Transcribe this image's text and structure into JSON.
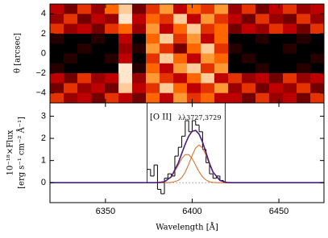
{
  "chart_data": [
    {
      "type": "heatmap",
      "ylabel": "θ [arcsec]",
      "xlim": [
        6318,
        6476
      ],
      "ylim": [
        -5,
        5
      ],
      "yticks": [
        {
          "value": -4,
          "label": "−4"
        },
        {
          "value": -2,
          "label": "−2"
        },
        0,
        2,
        4
      ],
      "z": [
        [
          0.5,
          0.3,
          0.6,
          0.4,
          0.7,
          0.9,
          0.3,
          0.6,
          0.8,
          0.5,
          0.7,
          0.6,
          0.8,
          0.4,
          0.6,
          0.3,
          0.5,
          0.6,
          0.4,
          0.5
        ],
        [
          0.4,
          0.6,
          0.3,
          0.5,
          0.4,
          0.95,
          0.5,
          0.7,
          0.6,
          0.9,
          0.5,
          0.8,
          0.6,
          0.5,
          0.3,
          0.6,
          0.4,
          0.3,
          0.6,
          0.4
        ],
        [
          0.6,
          0.4,
          0.5,
          0.3,
          0.6,
          0.7,
          0.4,
          0.8,
          0.5,
          0.7,
          0.9,
          0.6,
          0.7,
          0.3,
          0.5,
          0.4,
          0.6,
          0.5,
          0.3,
          0.6
        ],
        [
          0.1,
          0,
          0,
          0.1,
          0,
          0.5,
          0,
          0.7,
          0.9,
          0.6,
          0.8,
          0.5,
          0.7,
          0,
          0,
          0.1,
          0,
          0,
          0.1,
          0
        ],
        [
          0,
          0,
          0.1,
          0,
          0,
          0.4,
          0.1,
          0.8,
          0.6,
          0.3,
          0.7,
          0.9,
          0.6,
          0.1,
          0,
          0,
          0,
          0.1,
          0,
          0
        ],
        [
          0,
          0.1,
          0,
          0,
          0.1,
          0.5,
          0,
          0.6,
          0.9,
          0.7,
          0.5,
          0.8,
          0.7,
          0,
          0.1,
          0,
          0,
          0,
          0,
          0.1
        ],
        [
          0.1,
          0,
          0,
          0,
          0,
          0.95,
          0.1,
          0.7,
          0.5,
          0.8,
          0.9,
          0.6,
          0.8,
          0,
          0,
          0.1,
          0,
          0,
          0.1,
          0
        ],
        [
          0.5,
          0.3,
          0.6,
          0.4,
          0.5,
          0.95,
          0.4,
          0.8,
          0.6,
          0.5,
          0.7,
          0.9,
          0.5,
          0.6,
          0.4,
          0.5,
          0.3,
          0.6,
          0.4,
          0.5
        ],
        [
          0.3,
          0.6,
          0.4,
          0.5,
          0.3,
          0.9,
          0.5,
          0.6,
          0.9,
          0.7,
          0.5,
          0.6,
          0.8,
          0.4,
          0.6,
          0.3,
          0.5,
          0.4,
          0.6,
          0.3
        ],
        [
          0.6,
          0.4,
          0.5,
          0.3,
          0.6,
          0.5,
          0.3,
          0.7,
          0.5,
          0.8,
          0.6,
          0.7,
          0.5,
          0.5,
          0.3,
          0.6,
          0.4,
          0.5,
          0.3,
          0.6
        ]
      ]
    },
    {
      "type": "line",
      "xlabel": "Wavelength [Å]",
      "ylabel": [
        "10⁻¹⁸×Flux",
        "[erg s⁻¹ cm⁻² Å⁻¹]"
      ],
      "xlim": [
        6318,
        6476
      ],
      "ylim": [
        -0.9,
        3.6
      ],
      "xticks": [
        6350,
        6400,
        6450
      ],
      "yticks": [
        0,
        1,
        2,
        3
      ],
      "vlines": [
        6374,
        6419
      ],
      "annotations": [
        "[O II]",
        "λλ3727,3729"
      ],
      "step": {
        "color": "#000000",
        "bins": [
          6374,
          6376,
          6378,
          6380,
          6382,
          6384,
          6386,
          6388,
          6390,
          6392,
          6394,
          6396,
          6398,
          6400,
          6402,
          6404,
          6406,
          6408,
          6410,
          6412,
          6414,
          6416,
          6418,
          6420,
          6422
        ],
        "values": [
          0.6,
          0.3,
          0.8,
          -0.3,
          -0.5,
          0.2,
          0.4,
          0.3,
          1.2,
          1.6,
          2.1,
          2.8,
          2.3,
          2.8,
          2.6,
          2.3,
          1.5,
          0.9,
          0.4,
          0.2,
          0.3,
          0.1,
          0.0,
          0.0
        ]
      },
      "x": [
        6318,
        6380,
        6384,
        6388,
        6392,
        6394,
        6396,
        6398,
        6400,
        6402,
        6404,
        6406,
        6408,
        6410,
        6412,
        6416,
        6420,
        6424,
        6476
      ],
      "series": [
        {
          "color": "#d2691e",
          "values": [
            0,
            0,
            0.04,
            0.26,
            0.79,
            1.09,
            1.27,
            1.27,
            1.09,
            0.79,
            0.49,
            0.26,
            0.12,
            0.04,
            0.01,
            0,
            0,
            0,
            0
          ]
        },
        {
          "color": "#d2691e",
          "values": [
            0,
            0,
            0,
            0.01,
            0.1,
            0.23,
            0.47,
            0.83,
            1.23,
            1.57,
            1.7,
            1.57,
            1.23,
            0.83,
            0.47,
            0.1,
            0.01,
            0,
            0
          ]
        },
        {
          "color": "#4b1c7d",
          "values": [
            0,
            0,
            0.04,
            0.27,
            0.89,
            1.32,
            1.74,
            2.1,
            2.32,
            2.36,
            2.19,
            1.83,
            1.35,
            0.87,
            0.48,
            0.1,
            0.01,
            0,
            0
          ]
        }
      ]
    }
  ]
}
